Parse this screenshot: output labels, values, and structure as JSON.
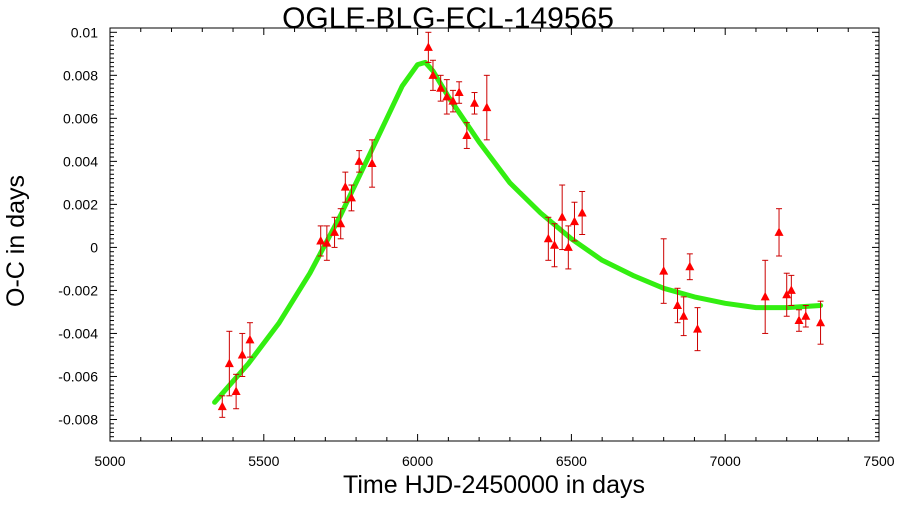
{
  "chart_data": {
    "type": "scatter",
    "title": "OGLE-BLG-ECL-149565",
    "xlabel": "Time HJD-2450000 in days",
    "ylabel": "O-C in days",
    "xlim": [
      5000,
      7500
    ],
    "ylim": [
      -0.009,
      0.0102
    ],
    "x_ticks": [
      5000,
      5500,
      6000,
      6500,
      7000,
      7500
    ],
    "x_tick_labels": [
      "5000",
      "5500",
      "6000",
      "6500",
      "7000",
      "7500"
    ],
    "y_ticks": [
      -0.008,
      -0.006,
      -0.004,
      -0.002,
      0,
      0.002,
      0.004,
      0.006,
      0.008,
      0.01
    ],
    "y_tick_labels": [
      "-0.008",
      "-0.006",
      "-0.004",
      "-0.002",
      "0",
      "0.002",
      "0.004",
      "0.006",
      "0.008",
      "0.01"
    ],
    "grid": false,
    "legend": "none",
    "colors": {
      "points": "#ff0000",
      "error_bars": "#cc0000",
      "fit": "#33ee11",
      "frame": "#000000"
    },
    "series": [
      {
        "marker": "triangle",
        "color": "#ff0000",
        "points": [
          {
            "x": 5365,
            "y": -0.0074,
            "err": 0.0005
          },
          {
            "x": 5388,
            "y": -0.0054,
            "err": 0.0015
          },
          {
            "x": 5410,
            "y": -0.0067,
            "err": 0.0008
          },
          {
            "x": 5430,
            "y": -0.005,
            "err": 0.001
          },
          {
            "x": 5455,
            "y": -0.0043,
            "err": 0.0008
          },
          {
            "x": 5685,
            "y": 0.0003,
            "err": 0.0007
          },
          {
            "x": 5705,
            "y": 0.0002,
            "err": 0.0008
          },
          {
            "x": 5730,
            "y": 0.0007,
            "err": 0.0007
          },
          {
            "x": 5750,
            "y": 0.0011,
            "err": 0.0007
          },
          {
            "x": 5765,
            "y": 0.0028,
            "err": 0.0007
          },
          {
            "x": 5785,
            "y": 0.0023,
            "err": 0.0006
          },
          {
            "x": 5810,
            "y": 0.004,
            "err": 0.0005
          },
          {
            "x": 5852,
            "y": 0.0039,
            "err": 0.0011
          },
          {
            "x": 6035,
            "y": 0.0093,
            "err": 0.0007
          },
          {
            "x": 6050,
            "y": 0.008,
            "err": 0.0007
          },
          {
            "x": 6075,
            "y": 0.0074,
            "err": 0.0006
          },
          {
            "x": 6095,
            "y": 0.007,
            "err": 0.0008
          },
          {
            "x": 6115,
            "y": 0.0068,
            "err": 0.0005
          },
          {
            "x": 6135,
            "y": 0.0072,
            "err": 0.0005
          },
          {
            "x": 6160,
            "y": 0.0052,
            "err": 0.0006
          },
          {
            "x": 6185,
            "y": 0.0067,
            "err": 0.0005
          },
          {
            "x": 6225,
            "y": 0.0065,
            "err": 0.0015
          },
          {
            "x": 6425,
            "y": 0.0004,
            "err": 0.001
          },
          {
            "x": 6445,
            "y": 0.0001,
            "err": 0.001
          },
          {
            "x": 6470,
            "y": 0.0014,
            "err": 0.0015
          },
          {
            "x": 6490,
            "y": 0.0,
            "err": 0.001
          },
          {
            "x": 6510,
            "y": 0.0012,
            "err": 0.0009
          },
          {
            "x": 6535,
            "y": 0.0016,
            "err": 0.001
          },
          {
            "x": 6800,
            "y": -0.0011,
            "err": 0.0015
          },
          {
            "x": 6845,
            "y": -0.0027,
            "err": 0.0008
          },
          {
            "x": 6865,
            "y": -0.0032,
            "err": 0.0009
          },
          {
            "x": 6885,
            "y": -0.0009,
            "err": 0.0006
          },
          {
            "x": 6910,
            "y": -0.0038,
            "err": 0.001
          },
          {
            "x": 7130,
            "y": -0.0023,
            "err": 0.0017
          },
          {
            "x": 7175,
            "y": 0.0007,
            "err": 0.0011
          },
          {
            "x": 7200,
            "y": -0.0022,
            "err": 0.001
          },
          {
            "x": 7215,
            "y": -0.002,
            "err": 0.0007
          },
          {
            "x": 7240,
            "y": -0.0034,
            "err": 0.0005
          },
          {
            "x": 7262,
            "y": -0.0032,
            "err": 0.0005
          },
          {
            "x": 7310,
            "y": -0.0035,
            "err": 0.001
          }
        ]
      },
      {
        "type": "line",
        "color": "#33ee11",
        "points": [
          {
            "x": 5340,
            "y": -0.0072
          },
          {
            "x": 5450,
            "y": -0.0054
          },
          {
            "x": 5550,
            "y": -0.0035
          },
          {
            "x": 5650,
            "y": -0.0012
          },
          {
            "x": 5750,
            "y": 0.0015
          },
          {
            "x": 5850,
            "y": 0.0045
          },
          {
            "x": 5950,
            "y": 0.0075
          },
          {
            "x": 6000,
            "y": 0.0085
          },
          {
            "x": 6025,
            "y": 0.0086
          },
          {
            "x": 6050,
            "y": 0.0082
          },
          {
            "x": 6100,
            "y": 0.007
          },
          {
            "x": 6200,
            "y": 0.0049
          },
          {
            "x": 6300,
            "y": 0.003
          },
          {
            "x": 6400,
            "y": 0.0016
          },
          {
            "x": 6500,
            "y": 0.0004
          },
          {
            "x": 6600,
            "y": -0.0006
          },
          {
            "x": 6700,
            "y": -0.0013
          },
          {
            "x": 6800,
            "y": -0.0019
          },
          {
            "x": 6900,
            "y": -0.0023
          },
          {
            "x": 7000,
            "y": -0.0026
          },
          {
            "x": 7100,
            "y": -0.0028
          },
          {
            "x": 7200,
            "y": -0.0028
          },
          {
            "x": 7310,
            "y": -0.0027
          }
        ]
      }
    ]
  }
}
